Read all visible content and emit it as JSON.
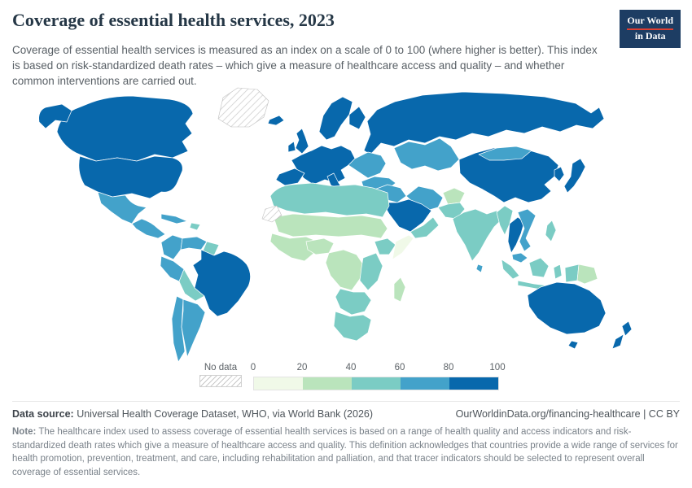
{
  "header": {
    "title": "Coverage of essential health services, 2023",
    "subtitle": "Coverage of essential health services is measured as an index on a scale of 0 to 100 (where higher is better). This index is based on risk-standardized death rates – which give a measure of healthcare access and quality – and whether common interventions are carried out.",
    "logo": {
      "line1": "Our World",
      "line2": "in Data",
      "bg_color": "#1d3d63",
      "accent_color": "#dc3e32"
    }
  },
  "legend": {
    "no_data_label": "No data",
    "ticks": [
      "0",
      "20",
      "40",
      "60",
      "80",
      "100"
    ],
    "bands": [
      "0-20",
      "20-40",
      "40-60",
      "60-80",
      "80-100"
    ],
    "band_colors": {
      "0-20": "#f0f9e8",
      "20-40": "#bae4bc",
      "40-60": "#7bccc4",
      "60-80": "#43a2ca",
      "80-100": "#0868ac"
    }
  },
  "chart_data": {
    "type": "heatmap",
    "subtype": "choropleth-world-map",
    "title": "Coverage of essential health services, 2023",
    "unit": "index (0–100, higher is better)",
    "legend_bins": [
      [
        0,
        20
      ],
      [
        20,
        40
      ],
      [
        40,
        60
      ],
      [
        60,
        80
      ],
      [
        80,
        100
      ]
    ],
    "no_data_style": "diagonal-hatch",
    "regions": {
      "greenland": {
        "name": "Greenland",
        "band": "no-data"
      },
      "canada": {
        "name": "Canada",
        "band": "80-100"
      },
      "alaska": {
        "name": "Alaska (United States)",
        "band": "80-100"
      },
      "usa": {
        "name": "United States",
        "band": "80-100"
      },
      "mexico": {
        "name": "Mexico",
        "band": "60-80"
      },
      "central-america": {
        "name": "Central America",
        "band": "60-80"
      },
      "cuba": {
        "name": "Cuba",
        "band": "60-80"
      },
      "hispaniola": {
        "name": "Hispaniola",
        "band": "40-60"
      },
      "colombia": {
        "name": "Colombia",
        "band": "60-80"
      },
      "venezuela": {
        "name": "Venezuela",
        "band": "60-80"
      },
      "guyanas": {
        "name": "Guyana & Suriname",
        "band": "40-60"
      },
      "peru": {
        "name": "Peru",
        "band": "60-80"
      },
      "brazil": {
        "name": "Brazil",
        "band": "80-100"
      },
      "bolivia": {
        "name": "Bolivia",
        "band": "40-60"
      },
      "chile": {
        "name": "Chile",
        "band": "60-80"
      },
      "argentina": {
        "name": "Argentina",
        "band": "60-80"
      },
      "iceland": {
        "name": "Iceland",
        "band": "80-100"
      },
      "uk": {
        "name": "United Kingdom",
        "band": "80-100"
      },
      "ireland": {
        "name": "Ireland",
        "band": "80-100"
      },
      "scandinavia": {
        "name": "Norway & Sweden",
        "band": "80-100"
      },
      "finland": {
        "name": "Finland",
        "band": "80-100"
      },
      "western-europe": {
        "name": "Western & Central Europe",
        "band": "80-100"
      },
      "iberia": {
        "name": "Spain & Portugal",
        "band": "80-100"
      },
      "italy": {
        "name": "Italy",
        "band": "80-100"
      },
      "eastern-europe": {
        "name": "Eastern Europe",
        "band": "60-80"
      },
      "russia": {
        "name": "Russia",
        "band": "80-100"
      },
      "central-asia": {
        "name": "Kazakhstan & Central Asia",
        "band": "60-80"
      },
      "turkey": {
        "name": "Turkey",
        "band": "60-80"
      },
      "levant-iraq": {
        "name": "Levant & Iraq",
        "band": "60-80"
      },
      "saudi": {
        "name": "Saudi Arabia & Gulf states",
        "band": "80-100"
      },
      "yemen-oman": {
        "name": "Yemen & Oman",
        "band": "40-60"
      },
      "iran": {
        "name": "Iran",
        "band": "60-80"
      },
      "afghanistan": {
        "name": "Afghanistan",
        "band": "20-40"
      },
      "pakistan": {
        "name": "Pakistan",
        "band": "40-60"
      },
      "india": {
        "name": "India",
        "band": "40-60"
      },
      "sri-lanka": {
        "name": "Sri Lanka",
        "band": "60-80"
      },
      "china": {
        "name": "China",
        "band": "80-100"
      },
      "mongolia": {
        "name": "Mongolia",
        "band": "60-80"
      },
      "korea": {
        "name": "South Korea",
        "band": "80-100"
      },
      "japan": {
        "name": "Japan",
        "band": "80-100"
      },
      "myanmar": {
        "name": "Myanmar",
        "band": "40-60"
      },
      "thailand": {
        "name": "Thailand",
        "band": "80-100"
      },
      "indochina": {
        "name": "Vietnam & Laos",
        "band": "60-80"
      },
      "malaysia": {
        "name": "Malaysia",
        "band": "60-80"
      },
      "indonesia": {
        "name": "Indonesia",
        "band": "40-60"
      },
      "philippines": {
        "name": "Philippines",
        "band": "40-60"
      },
      "png": {
        "name": "Papua New Guinea",
        "band": "20-40"
      },
      "australia": {
        "name": "Australia",
        "band": "80-100"
      },
      "tasmania": {
        "name": "Tasmania (Australia)",
        "band": "80-100"
      },
      "new-zealand": {
        "name": "New Zealand",
        "band": "80-100"
      },
      "north-africa": {
        "name": "North Africa (Morocco–Egypt)",
        "band": "40-60"
      },
      "western-sahara": {
        "name": "Western Sahara",
        "band": "no-data"
      },
      "sahel": {
        "name": "Sahara & Sahel (Mauritania–Sudan)",
        "band": "20-40"
      },
      "west-africa": {
        "name": "West Africa",
        "band": "20-40"
      },
      "nigeria": {
        "name": "Nigeria",
        "band": "20-40"
      },
      "central-africa": {
        "name": "Central Africa (DRC region)",
        "band": "20-40"
      },
      "ethiopia": {
        "name": "Ethiopia",
        "band": "40-60"
      },
      "somalia": {
        "name": "Somalia",
        "band": "0-20"
      },
      "east-africa": {
        "name": "East Africa (Kenya & Tanzania)",
        "band": "40-60"
      },
      "angola-zambia": {
        "name": "Angola & Zambia",
        "band": "40-60"
      },
      "southern-africa": {
        "name": "Southern Africa",
        "band": "40-60"
      },
      "madagascar": {
        "name": "Madagascar",
        "band": "20-40"
      }
    }
  },
  "footer": {
    "datasource_label": "Data source:",
    "datasource_text": " Universal Health Coverage Dataset, WHO, via World Bank (2026)",
    "link": "OurWorldinData.org/financing-healthcare | CC BY",
    "note_label": "Note:",
    "note_text": " The healthcare index used to assess coverage of essential health services is based on a range of health quality and access indicators and risk-standardized death rates which give a measure of healthcare access and quality. This definition acknowledges that countries provide a wide range of services for health promotion, prevention, treatment, and care, including rehabilitation and palliation, and that tracer indicators should be selected to represent overall coverage of essential services."
  }
}
